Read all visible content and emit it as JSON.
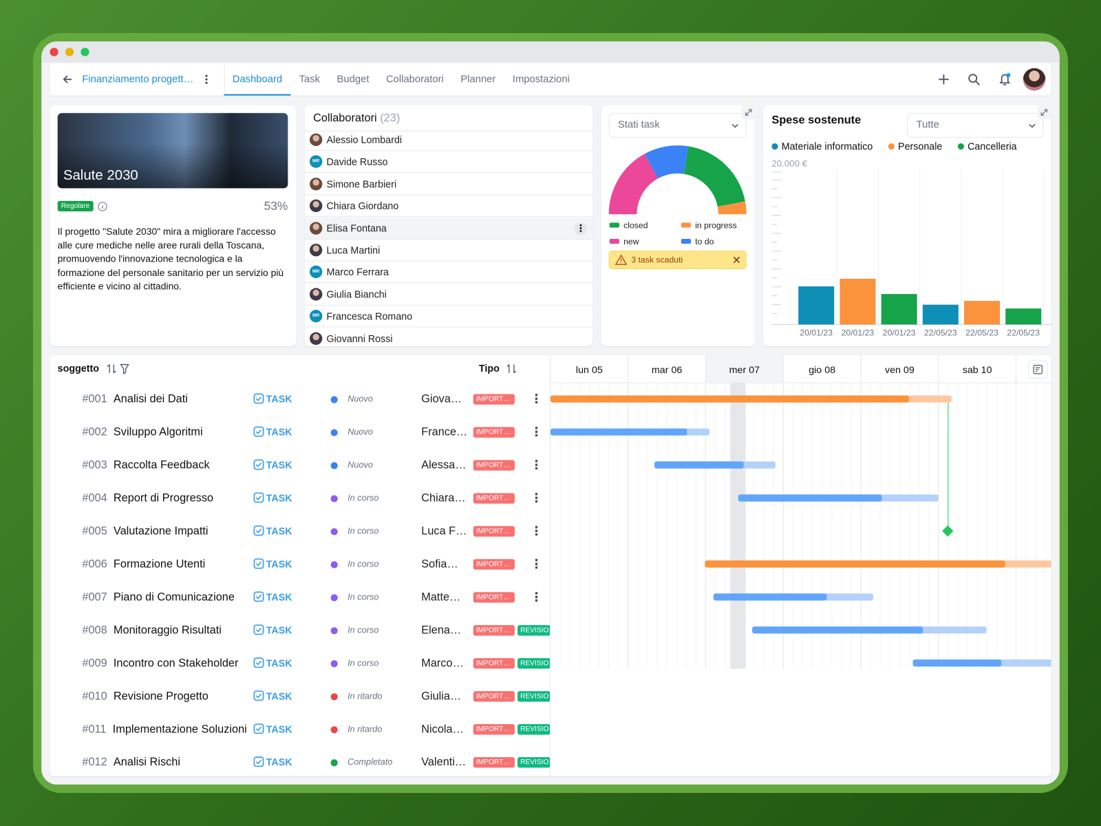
{
  "nav": {
    "project": "Finanziamento progett…",
    "tabs": [
      "Dashboard",
      "Task",
      "Budget",
      "Collaboratori",
      "Planner",
      "Impostazioni"
    ],
    "active_tab": 0
  },
  "project_card": {
    "title": "Salute 2030",
    "badge": "Regolare",
    "progress": "53%",
    "description": "Il progetto \"Salute 2030\" mira a migliorare l'accesso alle cure mediche nelle aree rurali della Toscana, promuovendo l'innovazione tecnologica e la formazione del personale sanitario per un servizio più efficiente e vicino al cittadino."
  },
  "collaborators": {
    "title": "Collaboratori",
    "count": "(23)",
    "members": [
      {
        "name": "Alessio Lombardi"
      },
      {
        "name": "Davide Russo",
        "initials": "MR"
      },
      {
        "name": "Simone Barbieri"
      },
      {
        "name": "Chiara Giordano"
      },
      {
        "name": "Elisa Fontana"
      },
      {
        "name": "Luca Martini"
      },
      {
        "name": "Marco Ferrara",
        "initials": "MR"
      },
      {
        "name": "Giulia Bianchi"
      },
      {
        "name": "Francesca Romano",
        "initials": "MR"
      },
      {
        "name": "Giovanni Rossi"
      }
    ]
  },
  "task_status": {
    "select": "Stati task",
    "alert": "3 task scaduti",
    "chart": {
      "type": "pie",
      "series": [
        {
          "name": "closed",
          "color": "#16a34a",
          "value": 39
        },
        {
          "name": "in progress",
          "color": "#fb923c",
          "value": 6
        },
        {
          "name": "new",
          "color": "#ec4899",
          "value": 34
        },
        {
          "name": "to do",
          "color": "#3b82f6",
          "value": 21
        }
      ]
    }
  },
  "expenses": {
    "title": "Spese sostenute",
    "select": "Tutte",
    "chart": {
      "type": "bar",
      "categories": [
        "20/01/23",
        "20/01/23",
        "20/01/23",
        "22/05/23",
        "22/05/23",
        "22/05/23"
      ],
      "series": [
        {
          "name": "Materiale informatico",
          "color": "#0e8fb5",
          "values": [
            5000,
            null,
            null,
            2600,
            null,
            null
          ]
        },
        {
          "name": "Personale",
          "color": "#fb923c",
          "values": [
            null,
            6000,
            null,
            null,
            3100,
            null
          ]
        },
        {
          "name": "Cancelleria",
          "color": "#16a34a",
          "values": [
            null,
            null,
            4000,
            null,
            null,
            2100
          ]
        }
      ],
      "ylim": [
        0,
        20000
      ],
      "yticks": [
        {
          "value": 20000,
          "label": "20.000 €"
        }
      ]
    }
  },
  "tasks": {
    "columns": {
      "subject": "soggetto",
      "type": "Tipo"
    },
    "days": [
      "lun 05",
      "mar 06",
      "mer 07",
      "gio 08",
      "ven 09",
      "sab 10"
    ],
    "rows": [
      {
        "id": "#001",
        "name": "Analisi dei Dati",
        "type": "TASK",
        "status": "Nuovo",
        "status_color": "#3b82f6",
        "assignee": "Giova…",
        "tags": [
          "IMPORT…"
        ],
        "bar": {
          "start": 0,
          "end": 5.17,
          "progress": 4.62,
          "color": "#fb923c",
          "track_color": "#fdc8a0"
        }
      },
      {
        "id": "#002",
        "name": "Sviluppo Algoritmi",
        "type": "TASK",
        "status": "Nuovo",
        "status_color": "#3b82f6",
        "assignee": "France…",
        "tags": [
          "IMPORT…"
        ],
        "bar": {
          "start": 0,
          "end": 2.05,
          "progress": 1.76,
          "color": "#60a5fa",
          "track_color": "#b3d1fb"
        }
      },
      {
        "id": "#003",
        "name": "Raccolta Feedback",
        "type": "TASK",
        "status": "Nuovo",
        "status_color": "#3b82f6",
        "assignee": "Alessa…",
        "tags": [
          "IMPORT…"
        ],
        "bar": {
          "start": 1.34,
          "end": 2.9,
          "progress": 2.49,
          "color": "#60a5fa",
          "track_color": "#b3d1fb"
        }
      },
      {
        "id": "#004",
        "name": "Report di Progresso",
        "type": "TASK",
        "status": "In corso",
        "status_color": "#8b5cf6",
        "assignee": "Chiara…",
        "tags": [
          "IMPORT…"
        ],
        "bar": {
          "start": 2.42,
          "end": 5.0,
          "progress": 4.27,
          "color": "#60a5fa",
          "track_color": "#b3d1fb"
        }
      },
      {
        "id": "#005",
        "name": "Valutazione Impatti",
        "type": "TASK",
        "status": "In corso",
        "status_color": "#8b5cf6",
        "assignee": "Luca F…",
        "tags": [
          "IMPORT…"
        ],
        "milestone": {
          "at": 5.12,
          "color": "#22c55e"
        }
      },
      {
        "id": "#006",
        "name": "Formazione Utenti",
        "type": "TASK",
        "status": "In corso",
        "status_color": "#8b5cf6",
        "assignee": "Sofia…",
        "tags": [
          "IMPORT…"
        ],
        "bar": {
          "start": 1.99,
          "end": 6.6,
          "progress": 5.86,
          "color": "#fb923c",
          "track_color": "#fdc8a0"
        }
      },
      {
        "id": "#007",
        "name": "Piano di Comunicazione",
        "type": "TASK",
        "status": "In corso",
        "status_color": "#8b5cf6",
        "assignee": "Matte…",
        "tags": [
          "IMPORT…"
        ],
        "bar": {
          "start": 2.1,
          "end": 4.16,
          "progress": 3.56,
          "color": "#60a5fa",
          "track_color": "#b3d1fb"
        }
      },
      {
        "id": "#008",
        "name": "Monitoraggio Risultati",
        "type": "TASK",
        "status": "In corso",
        "status_color": "#8b5cf6",
        "assignee": "Elena…",
        "tags": [
          "IMPORT…",
          "REVISIO"
        ],
        "bar": {
          "start": 2.6,
          "end": 5.62,
          "progress": 4.8,
          "color": "#60a5fa",
          "track_color": "#b3d1fb"
        }
      },
      {
        "id": "#009",
        "name": "Incontro con Stakeholder",
        "type": "TASK",
        "status": "In corso",
        "status_color": "#8b5cf6",
        "assignee": "Marco…",
        "tags": [
          "IMPORT…",
          "REVISIO"
        ],
        "bar": {
          "start": 4.67,
          "end": 6.8,
          "progress": 5.81,
          "color": "#60a5fa",
          "track_color": "#b3d1fb"
        }
      },
      {
        "id": "#010",
        "name": "Revisione Progetto",
        "type": "TASK",
        "status": "In ritardo",
        "status_color": "#ef4444",
        "assignee": "Giulia…",
        "tags": [
          "IMPORT…",
          "REVISIO"
        ]
      },
      {
        "id": "#011",
        "name": "Implementazione Soluzioni",
        "type": "TASK",
        "status": "In ritardo",
        "status_color": "#ef4444",
        "assignee": "Nicola…",
        "tags": [
          "IMPORT…",
          "REVISIO"
        ]
      },
      {
        "id": "#012",
        "name": "Analisi Rischi",
        "type": "TASK",
        "status": "Completato",
        "status_color": "#16a34a",
        "assignee": "Valenti…",
        "tags": [
          "IMPORT…",
          "REVISIO"
        ]
      }
    ]
  }
}
